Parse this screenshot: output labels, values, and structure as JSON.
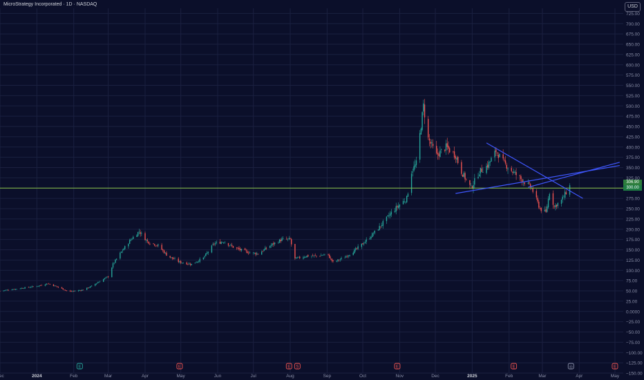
{
  "header": {
    "title": "MicroStrategy Incorporated · 1D · NASDAQ"
  },
  "currency_label": "USD",
  "price_tags": [
    "306.90",
    "300.00"
  ],
  "colors": {
    "background": "#0b0f2a",
    "grid": "#1b2040",
    "axis_text": "#8a8fa8",
    "up": "#26a69a",
    "down": "#ef5350",
    "trendline": "#3f57ff",
    "horizontal_level": "#8bc34a",
    "event_marker": "#ef5350"
  },
  "chart_data": {
    "type": "candlestick",
    "title": "MicroStrategy Incorporated · 1D · NASDAQ",
    "y_axis": {
      "ticks": [
        "725.00",
        "700.00",
        "675.00",
        "650.00",
        "625.00",
        "600.00",
        "575.00",
        "550.00",
        "525.00",
        "500.00",
        "475.00",
        "450.00",
        "425.00",
        "400.00",
        "375.00",
        "350.00",
        "325.00",
        "300.00",
        "275.00",
        "250.00",
        "225.00",
        "200.00",
        "175.00",
        "150.00",
        "125.00",
        "100.00",
        "75.00",
        "50.00",
        "25.00",
        "0.0000",
        "−25.00",
        "−50.00",
        "−75.00",
        "−100.00",
        "−125.00",
        "−150.00"
      ],
      "range": [
        -150,
        737.5
      ],
      "grid": true,
      "position": "right"
    },
    "x_axis": {
      "labels": [
        "Dec",
        "2024",
        "Feb",
        "Mar",
        "Apr",
        "May",
        "Jun",
        "Jul",
        "Aug",
        "Sep",
        "Oct",
        "Nov",
        "Dec",
        "2025",
        "Feb",
        "Mar",
        "Apr",
        "May"
      ],
      "bold_labels": [
        "2024",
        "2025"
      ],
      "range": [
        "2023-12-01",
        "2025-05-08"
      ],
      "grid": true
    },
    "price_path": [
      [
        "2023-12-01",
        50
      ],
      [
        "2023-12-15",
        55
      ],
      [
        "2024-01-02",
        62
      ],
      [
        "2024-01-10",
        68
      ],
      [
        "2024-01-20",
        58
      ],
      [
        "2024-01-28",
        48
      ],
      [
        "2024-02-08",
        52
      ],
      [
        "2024-02-15",
        60
      ],
      [
        "2024-02-22",
        72
      ],
      [
        "2024-03-01",
        85
      ],
      [
        "2024-03-05",
        115
      ],
      [
        "2024-03-12",
        145
      ],
      [
        "2024-03-20",
        175
      ],
      [
        "2024-03-27",
        195
      ],
      [
        "2024-04-03",
        170
      ],
      [
        "2024-04-12",
        160
      ],
      [
        "2024-04-20",
        135
      ],
      [
        "2024-04-30",
        120
      ],
      [
        "2024-05-10",
        115
      ],
      [
        "2024-05-20",
        130
      ],
      [
        "2024-05-29",
        165
      ],
      [
        "2024-06-06",
        170
      ],
      [
        "2024-06-15",
        155
      ],
      [
        "2024-06-25",
        145
      ],
      [
        "2024-07-05",
        140
      ],
      [
        "2024-07-15",
        160
      ],
      [
        "2024-07-25",
        175
      ],
      [
        "2024-08-01",
        175
      ],
      [
        "2024-08-05",
        128
      ],
      [
        "2024-08-15",
        135
      ],
      [
        "2024-08-25",
        135
      ],
      [
        "2024-09-01",
        140
      ],
      [
        "2024-09-06",
        120
      ],
      [
        "2024-09-15",
        130
      ],
      [
        "2024-09-25",
        150
      ],
      [
        "2024-10-05",
        175
      ],
      [
        "2024-10-15",
        205
      ],
      [
        "2024-10-25",
        240
      ],
      [
        "2024-11-01",
        260
      ],
      [
        "2024-11-07",
        275
      ],
      [
        "2024-11-11",
        340
      ],
      [
        "2024-11-15",
        360
      ],
      [
        "2024-11-21",
        500
      ],
      [
        "2024-11-25",
        420
      ],
      [
        "2024-12-02",
        380
      ],
      [
        "2024-12-10",
        400
      ],
      [
        "2024-12-18",
        380
      ],
      [
        "2024-12-23",
        340
      ],
      [
        "2024-12-31",
        300
      ],
      [
        "2025-01-07",
        340
      ],
      [
        "2025-01-14",
        355
      ],
      [
        "2025-01-21",
        390
      ],
      [
        "2025-01-28",
        360
      ],
      [
        "2025-02-04",
        340
      ],
      [
        "2025-02-12",
        320
      ],
      [
        "2025-02-20",
        300
      ],
      [
        "2025-02-27",
        250
      ],
      [
        "2025-03-04",
        240
      ],
      [
        "2025-03-07",
        290
      ],
      [
        "2025-03-11",
        255
      ],
      [
        "2025-03-17",
        270
      ],
      [
        "2025-03-21",
        290
      ],
      [
        "2025-03-24",
        305
      ]
    ],
    "annotations": {
      "horizontal_level": 300,
      "trendlines": [
        {
          "from": [
            "2025-01-13",
            410
          ],
          "to": [
            "2025-04-04",
            275
          ]
        },
        {
          "from": [
            "2024-12-18",
            287
          ],
          "to": [
            "2025-05-05",
            355
          ]
        },
        {
          "from": [
            "2025-02-17",
            302
          ],
          "to": [
            "2025-05-05",
            363
          ]
        }
      ],
      "event_markers": [
        {
          "date": "2024-02-06",
          "label": "E",
          "color": "#26a69a"
        },
        {
          "date": "2024-04-30",
          "label": "E",
          "color": "#ef5350"
        },
        {
          "date": "2024-07-31",
          "label": "E",
          "color": "#ef5350"
        },
        {
          "date": "2024-08-07",
          "label": "S",
          "color": "#ef5350"
        },
        {
          "date": "2024-10-30",
          "label": "E",
          "color": "#ef5350"
        },
        {
          "date": "2025-02-05",
          "label": "E",
          "color": "#ef5350"
        },
        {
          "date": "2025-03-25",
          "label": "◎",
          "color": "#8a8fa8"
        },
        {
          "date": "2025-05-01",
          "label": "E",
          "color": "#ef5350"
        }
      ]
    }
  }
}
